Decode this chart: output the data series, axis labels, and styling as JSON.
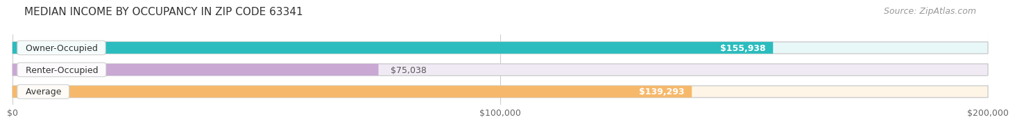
{
  "title": "MEDIAN INCOME BY OCCUPANCY IN ZIP CODE 63341",
  "source": "Source: ZipAtlas.com",
  "categories": [
    "Owner-Occupied",
    "Renter-Occupied",
    "Average"
  ],
  "values": [
    155938,
    75038,
    139293
  ],
  "bar_colors": [
    "#2bbcbe",
    "#c9a8d4",
    "#f6b96b"
  ],
  "bar_bg_colors": [
    "#e8f8f8",
    "#f0eaf5",
    "#fef5e7"
  ],
  "value_labels": [
    "$155,938",
    "$75,038",
    "$139,293"
  ],
  "label_inside": [
    true,
    false,
    true
  ],
  "xlim": [
    0,
    200000
  ],
  "xticks": [
    0,
    100000,
    200000
  ],
  "xticklabels": [
    "$0",
    "$100,000",
    "$200,000"
  ],
  "background_color": "#ffffff",
  "title_fontsize": 11,
  "source_fontsize": 9
}
